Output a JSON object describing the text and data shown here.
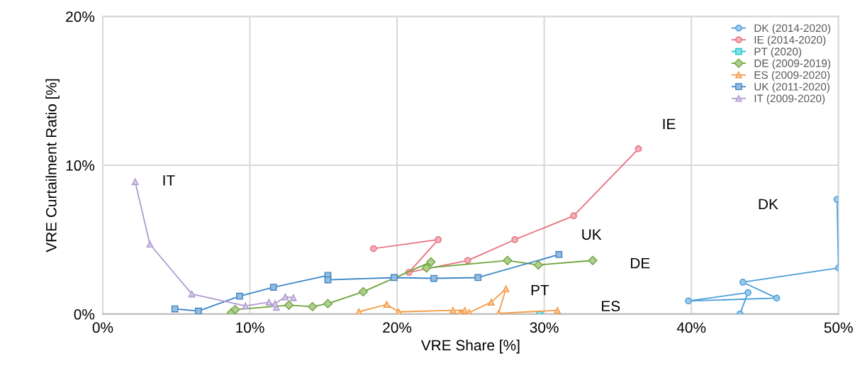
{
  "chart_data": {
    "type": "line",
    "xlabel": "VRE Share [%]",
    "ylabel": "VRE Curtailment Ratio [%]",
    "xlim": [
      0,
      50
    ],
    "ylim": [
      0,
      20
    ],
    "xticks": [
      {
        "value": 0,
        "label": "0%"
      },
      {
        "value": 10,
        "label": "10%"
      },
      {
        "value": 20,
        "label": "20%"
      },
      {
        "value": 30,
        "label": "30%"
      },
      {
        "value": 40,
        "label": "40%"
      },
      {
        "value": 50,
        "label": "50%"
      }
    ],
    "yticks": [
      {
        "value": 0,
        "label": "0%"
      },
      {
        "value": 10,
        "label": "10%"
      },
      {
        "value": 20,
        "label": "20%"
      }
    ],
    "grid": true,
    "legend": "top right",
    "line_style": "solid",
    "series": [
      {
        "name": "DK (2014-2020)",
        "color": "#4a9fd8",
        "marker": "circle",
        "x": [
          43.3,
          43.85,
          39.8,
          45.8,
          43.5,
          50.0,
          49.9
        ],
        "values": [
          0.0,
          1.44,
          0.88,
          1.07,
          2.14,
          3.1,
          7.7
        ]
      },
      {
        "name": "IE (2014-2020)",
        "color": "#e8707f",
        "marker": "circle",
        "x": [
          18.4,
          22.8,
          20.8,
          24.8,
          28.0,
          32.0,
          36.4
        ],
        "values": [
          4.4,
          5.0,
          2.8,
          3.6,
          5.0,
          6.6,
          11.1
        ]
      },
      {
        "name": "PT (2020)",
        "color": "#1fc4cf",
        "marker": "square",
        "x": [
          29.7
        ],
        "values": [
          0.0
        ]
      },
      {
        "name": "DE (2009-2019)",
        "color": "#6fa53a",
        "marker": "diamond",
        "x": [
          8.75,
          9.0,
          12.65,
          14.25,
          15.3,
          17.7,
          22.3,
          22.0,
          27.5,
          29.6,
          33.3
        ],
        "values": [
          0.1,
          0.3,
          0.6,
          0.5,
          0.7,
          1.5,
          3.5,
          3.1,
          3.6,
          3.3,
          3.6
        ]
      },
      {
        "name": "ES (2009-2020)",
        "color": "#f59a45",
        "marker": "triangle",
        "x": [
          17.4,
          19.3,
          20.1,
          23.8,
          24.6,
          24.3,
          24.9,
          26.4,
          27.4,
          26.9,
          30.9
        ],
        "values": [
          0.15,
          0.65,
          0.15,
          0.25,
          0.25,
          0.1,
          0.1,
          0.8,
          1.7,
          0.05,
          0.25
        ]
      },
      {
        "name": "UK (2011-2020)",
        "color": "#3f86c6",
        "marker": "square",
        "x": [
          4.9,
          6.5,
          9.3,
          11.6,
          15.3,
          15.3,
          19.8,
          22.5,
          25.5,
          31.0
        ],
        "values": [
          0.35,
          0.2,
          1.2,
          1.8,
          2.6,
          2.3,
          2.45,
          2.4,
          2.45,
          4.0
        ]
      },
      {
        "name": "IT (2009-2020)",
        "color": "#b09ad0",
        "marker": "triangle",
        "x": [
          2.2,
          3.2,
          6.05,
          9.7,
          11.3,
          11.8,
          11.7,
          12.4,
          12.95
        ],
        "values": [
          8.9,
          4.7,
          1.35,
          0.55,
          0.8,
          0.45,
          0.7,
          1.15,
          1.1
        ]
      }
    ],
    "annotations": [
      "IT",
      "IE",
      "DK",
      "UK",
      "DE",
      "PT",
      "ES"
    ]
  }
}
